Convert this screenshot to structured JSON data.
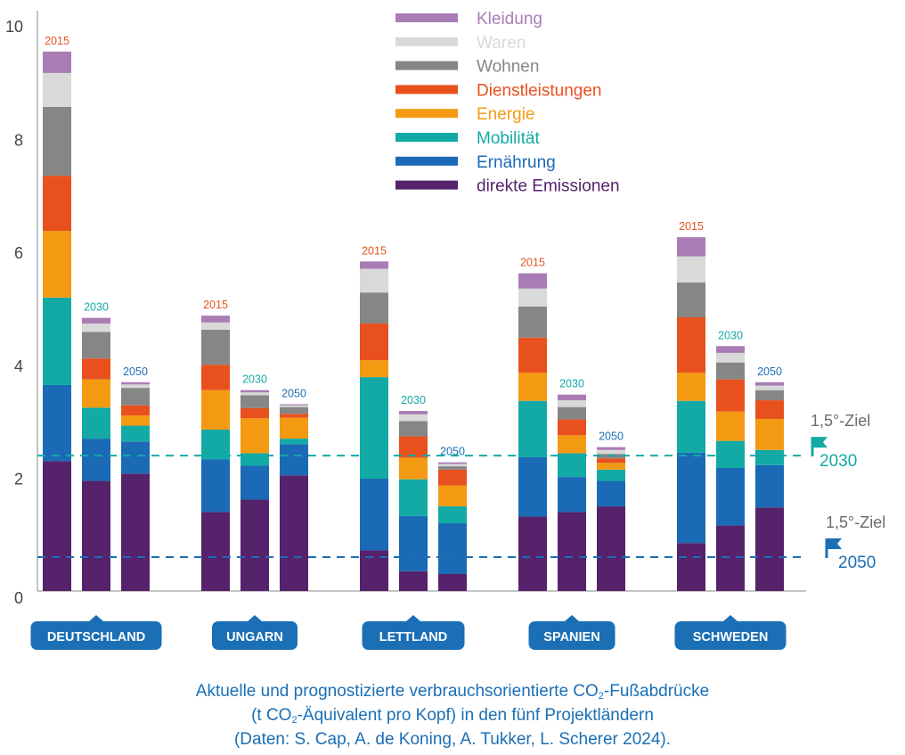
{
  "chart_data": {
    "type": "bar",
    "stacked": true,
    "ylim": [
      0,
      10
    ],
    "yticks": [
      0,
      2,
      4,
      6,
      8,
      10
    ],
    "categories": [
      "DEUTSCHLAND",
      "UNGARN",
      "LETTLAND",
      "SPANIEN",
      "SCHWEDEN"
    ],
    "years": [
      "2015",
      "2030",
      "2050"
    ],
    "series": [
      {
        "name": "direkte Emissionen",
        "color": "#55226b",
        "values": [
          [
            2.3,
            1.95,
            2.08
          ],
          [
            1.4,
            1.62,
            2.05
          ],
          [
            0.72,
            0.35,
            0.3
          ],
          [
            1.32,
            1.4,
            1.5
          ],
          [
            0.85,
            1.16,
            1.48
          ]
        ]
      },
      {
        "name": "Ernährung",
        "color": "#1a6ab5",
        "values": [
          [
            1.35,
            0.75,
            0.57
          ],
          [
            0.93,
            0.6,
            0.55
          ],
          [
            1.27,
            0.98,
            0.9
          ],
          [
            1.05,
            0.62,
            0.45
          ],
          [
            1.6,
            1.02,
            0.75
          ]
        ]
      },
      {
        "name": "Mobilität",
        "color": "#13aaa6",
        "values": [
          [
            1.55,
            0.55,
            0.28
          ],
          [
            0.53,
            0.22,
            0.1
          ],
          [
            1.8,
            0.65,
            0.3
          ],
          [
            1.0,
            0.42,
            0.2
          ],
          [
            0.92,
            0.48,
            0.27
          ]
        ]
      },
      {
        "name": "Energie",
        "color": "#f39a12",
        "values": [
          [
            1.18,
            0.5,
            0.18
          ],
          [
            0.7,
            0.62,
            0.37
          ],
          [
            0.3,
            0.38,
            0.37
          ],
          [
            0.5,
            0.32,
            0.12
          ],
          [
            0.5,
            0.52,
            0.55
          ]
        ]
      },
      {
        "name": "Dienstleistungen",
        "color": "#e8511e",
        "values": [
          [
            0.98,
            0.37,
            0.18
          ],
          [
            0.45,
            0.18,
            0.07
          ],
          [
            0.65,
            0.38,
            0.28
          ],
          [
            0.62,
            0.28,
            0.08
          ],
          [
            0.98,
            0.57,
            0.33
          ]
        ]
      },
      {
        "name": "Wohnen",
        "color": "#868686",
        "values": [
          [
            1.22,
            0.47,
            0.31
          ],
          [
            0.62,
            0.23,
            0.12
          ],
          [
            0.55,
            0.27,
            0.06
          ],
          [
            0.55,
            0.22,
            0.08
          ],
          [
            0.62,
            0.3,
            0.18
          ]
        ]
      },
      {
        "name": "Waren",
        "color": "#d9d9d9",
        "values": [
          [
            0.6,
            0.15,
            0.06
          ],
          [
            0.13,
            0.05,
            0.03
          ],
          [
            0.42,
            0.12,
            0.04
          ],
          [
            0.32,
            0.12,
            0.07
          ],
          [
            0.46,
            0.17,
            0.08
          ]
        ]
      },
      {
        "name": "Kleidung",
        "color": "#a97cb5",
        "values": [
          [
            0.38,
            0.1,
            0.04
          ],
          [
            0.12,
            0.04,
            0.02
          ],
          [
            0.13,
            0.06,
            0.03
          ],
          [
            0.27,
            0.1,
            0.05
          ],
          [
            0.34,
            0.12,
            0.06
          ]
        ]
      }
    ],
    "year_label_colors": {
      "2015": "#e2541f",
      "2030": "#13aaa6",
      "2050": "#1a6fb5"
    },
    "reference_lines": [
      {
        "value": 2.4,
        "label": "1,5°-Ziel",
        "year": "2030",
        "color": "#13aaa6"
      },
      {
        "value": 0.6,
        "label": "1,5°-Ziel",
        "year": "2050",
        "color": "#1a6fb5"
      }
    ],
    "badge_color": "#1a6fb5"
  },
  "caption": {
    "line1_pre": "Aktuelle und prognostizierte verbrauchsorientierte CO",
    "line1_sub": "2",
    "line1_post": "-Fußabdrücke",
    "line2_pre": "(t CO",
    "line2_sub": "2",
    "line2_post": "-Äquivalent pro Kopf) in den fünf Projektländern",
    "line3": "(Daten: S. Cap, A. de Koning, A. Tukker, L. Scherer 2024)."
  }
}
